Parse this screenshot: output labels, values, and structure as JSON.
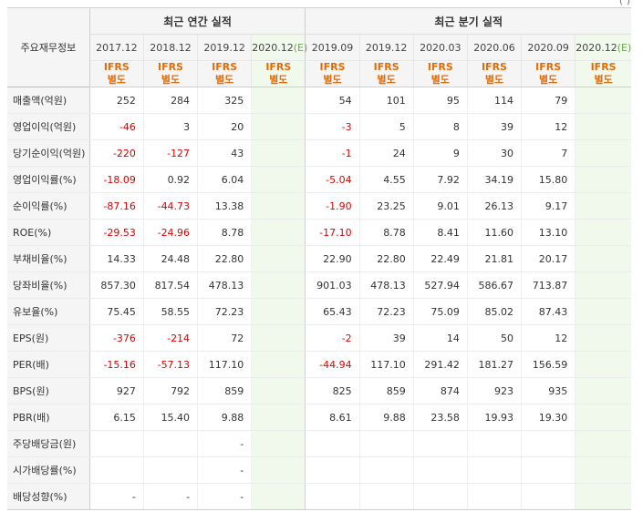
{
  "corner_label": "주요재무정보",
  "top_mark": "( )",
  "groups": {
    "annual": "최근 연간 실적",
    "quarterly": "최근 분기 실적"
  },
  "periods": [
    {
      "label": "2017.12",
      "estimate": false,
      "est_mark": "",
      "acct1": "IFRS",
      "acct2": "별도"
    },
    {
      "label": "2018.12",
      "estimate": false,
      "est_mark": "",
      "acct1": "IFRS",
      "acct2": "별도"
    },
    {
      "label": "2019.12",
      "estimate": false,
      "est_mark": "",
      "acct1": "IFRS",
      "acct2": "별도"
    },
    {
      "label": "2020.12",
      "estimate": true,
      "est_mark": "(E)",
      "acct1": "IFRS",
      "acct2": "별도"
    },
    {
      "label": "2019.09",
      "estimate": false,
      "est_mark": "",
      "acct1": "IFRS",
      "acct2": "별도"
    },
    {
      "label": "2019.12",
      "estimate": false,
      "est_mark": "",
      "acct1": "IFRS",
      "acct2": "별도"
    },
    {
      "label": "2020.03",
      "estimate": false,
      "est_mark": "",
      "acct1": "IFRS",
      "acct2": "별도"
    },
    {
      "label": "2020.06",
      "estimate": false,
      "est_mark": "",
      "acct1": "IFRS",
      "acct2": "별도"
    },
    {
      "label": "2020.09",
      "estimate": false,
      "est_mark": "",
      "acct1": "IFRS",
      "acct2": "별도"
    },
    {
      "label": "2020.12",
      "estimate": true,
      "est_mark": "(E)",
      "acct1": "IFRS",
      "acct2": "별도"
    }
  ],
  "rows": [
    {
      "label": "매출액(억원)",
      "group_start": true,
      "values": [
        "252",
        "284",
        "325",
        "",
        "54",
        "101",
        "95",
        "114",
        "79",
        ""
      ]
    },
    {
      "label": "영업이익(억원)",
      "group_start": false,
      "values": [
        "-46",
        "3",
        "20",
        "",
        "-3",
        "5",
        "8",
        "39",
        "12",
        ""
      ]
    },
    {
      "label": "당기순이익(억원)",
      "group_start": false,
      "values": [
        "-220",
        "-127",
        "43",
        "",
        "-1",
        "24",
        "9",
        "30",
        "7",
        ""
      ]
    },
    {
      "label": "영업이익률(%)",
      "group_start": true,
      "values": [
        "-18.09",
        "0.92",
        "6.04",
        "",
        "-5.04",
        "4.55",
        "7.92",
        "34.19",
        "15.80",
        ""
      ]
    },
    {
      "label": "순이익률(%)",
      "group_start": false,
      "values": [
        "-87.16",
        "-44.73",
        "13.38",
        "",
        "-1.90",
        "23.25",
        "9.01",
        "26.13",
        "9.17",
        ""
      ]
    },
    {
      "label": "ROE(%)",
      "group_start": false,
      "values": [
        "-29.53",
        "-24.96",
        "8.78",
        "",
        "-17.10",
        "8.78",
        "8.41",
        "11.60",
        "13.10",
        ""
      ]
    },
    {
      "label": "부채비율(%)",
      "group_start": true,
      "values": [
        "14.33",
        "24.48",
        "22.80",
        "",
        "22.90",
        "22.80",
        "22.49",
        "21.81",
        "20.17",
        ""
      ]
    },
    {
      "label": "당좌비율(%)",
      "group_start": false,
      "values": [
        "857.30",
        "817.54",
        "478.13",
        "",
        "901.03",
        "478.13",
        "527.94",
        "586.67",
        "713.87",
        ""
      ]
    },
    {
      "label": "유보율(%)",
      "group_start": false,
      "values": [
        "75.45",
        "58.55",
        "72.23",
        "",
        "65.43",
        "72.23",
        "75.09",
        "85.02",
        "87.43",
        ""
      ]
    },
    {
      "label": "EPS(원)",
      "group_start": true,
      "values": [
        "-376",
        "-214",
        "72",
        "",
        "-2",
        "39",
        "14",
        "50",
        "12",
        ""
      ]
    },
    {
      "label": "PER(배)",
      "group_start": false,
      "values": [
        "-15.16",
        "-57.13",
        "117.10",
        "",
        "-44.94",
        "117.10",
        "291.42",
        "181.27",
        "156.59",
        ""
      ]
    },
    {
      "label": "BPS(원)",
      "group_start": false,
      "values": [
        "927",
        "792",
        "859",
        "",
        "825",
        "859",
        "874",
        "923",
        "935",
        ""
      ]
    },
    {
      "label": "PBR(배)",
      "group_start": false,
      "values": [
        "6.15",
        "15.40",
        "9.88",
        "",
        "8.61",
        "9.88",
        "23.58",
        "19.93",
        "19.30",
        ""
      ]
    },
    {
      "label": "주당배당금(원)",
      "group_start": true,
      "values": [
        "",
        "",
        "-",
        "",
        "",
        "",
        "",
        "",
        "",
        ""
      ]
    },
    {
      "label": "시가배당률(%)",
      "group_start": false,
      "values": [
        "",
        "",
        "-",
        "",
        "",
        "",
        "",
        "",
        "",
        ""
      ]
    },
    {
      "label": "배당성향(%)",
      "group_start": false,
      "values": [
        "-",
        "-",
        "-",
        "",
        "",
        "",
        "",
        "",
        "",
        ""
      ]
    }
  ]
}
